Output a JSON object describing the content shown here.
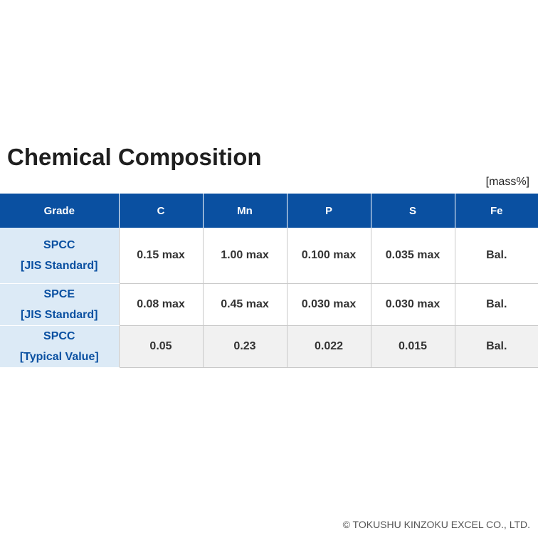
{
  "title": "Chemical Composition",
  "unit": "[mass%]",
  "table": {
    "headers": [
      "Grade",
      "C",
      "Mn",
      "P",
      "S",
      "Fe"
    ],
    "rows": [
      {
        "grade": "SPCC",
        "grade_sub": "[JIS Standard]",
        "values": [
          "0.15 max",
          "1.00 max",
          "0.100 max",
          "0.035 max",
          "Bal."
        ]
      },
      {
        "grade": "SPCE",
        "grade_sub": "[JIS Standard]",
        "values": [
          "0.08 max",
          "0.45 max",
          "0.030 max",
          "0.030 max",
          "Bal."
        ]
      },
      {
        "grade": "SPCC",
        "grade_sub": "[Typical Value]",
        "values": [
          "0.05",
          "0.23",
          "0.022",
          "0.015",
          "Bal."
        ]
      }
    ]
  },
  "footer": "© TOKUSHU KINZOKU EXCEL CO., LTD.",
  "colors": {
    "header_bg": "#0a50a1",
    "grade_bg": "#dceaf6",
    "typical_row_bg": "#f1f1f1"
  }
}
